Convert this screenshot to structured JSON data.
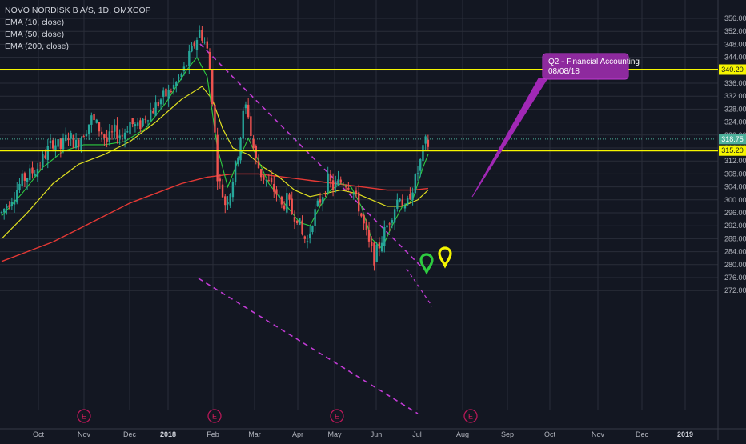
{
  "chart_data": {
    "type": "candlestick",
    "symbol_title": "NOVO NORDISK B A/S, 1D, OMXCOP",
    "indicators": [
      "EMA (10, close)",
      "EMA (50, close)",
      "EMA (200, close)"
    ],
    "y_axis": {
      "ticks": [
        "356.00",
        "352.00",
        "348.00",
        "344.00",
        "340.00",
        "336.00",
        "332.00",
        "328.00",
        "324.00",
        "320.00",
        "316.00",
        "312.00",
        "308.00",
        "304.00",
        "300.00",
        "296.00",
        "292.00",
        "288.00",
        "284.00",
        "280.00",
        "276.00",
        "272.00"
      ],
      "range": [
        271,
        358
      ]
    },
    "x_axis": {
      "ticks": [
        {
          "label": "Oct",
          "bold": false
        },
        {
          "label": "Nov",
          "bold": false
        },
        {
          "label": "Dec",
          "bold": false
        },
        {
          "label": "2018",
          "bold": true
        },
        {
          "label": "Feb",
          "bold": false
        },
        {
          "label": "Mar",
          "bold": false
        },
        {
          "label": "Apr",
          "bold": false
        },
        {
          "label": "May",
          "bold": false
        },
        {
          "label": "Jun",
          "bold": false
        },
        {
          "label": "Jul",
          "bold": false
        },
        {
          "label": "Aug",
          "bold": false
        },
        {
          "label": "Sep",
          "bold": false
        },
        {
          "label": "Oct",
          "bold": false
        },
        {
          "label": "Nov",
          "bold": false
        },
        {
          "label": "Dec",
          "bold": false
        },
        {
          "label": "2019",
          "bold": true
        }
      ]
    },
    "price_path": [
      [
        0,
        296
      ],
      [
        5,
        302
      ],
      [
        8,
        306
      ],
      [
        11,
        308
      ],
      [
        14,
        310
      ],
      [
        17,
        314
      ],
      [
        20,
        318
      ],
      [
        23,
        316
      ],
      [
        26,
        320
      ],
      [
        29,
        317
      ],
      [
        32,
        321
      ],
      [
        35,
        325
      ],
      [
        38,
        322
      ],
      [
        41,
        318
      ],
      [
        44,
        321
      ],
      [
        47,
        320
      ],
      [
        50,
        324
      ],
      [
        53,
        322
      ],
      [
        56,
        326
      ],
      [
        59,
        328
      ],
      [
        62,
        331
      ],
      [
        65,
        333
      ],
      [
        68,
        336
      ],
      [
        71,
        340
      ],
      [
        73,
        344
      ],
      [
        75,
        348
      ],
      [
        77,
        352
      ],
      [
        78.5,
        350
      ],
      [
        80,
        346
      ],
      [
        81.5,
        337
      ],
      [
        83,
        320
      ],
      [
        84,
        308
      ],
      [
        85.5,
        303
      ],
      [
        87,
        299
      ],
      [
        89,
        303
      ],
      [
        91,
        310
      ],
      [
        92.5,
        317
      ],
      [
        94,
        326
      ],
      [
        95.5,
        330
      ],
      [
        97,
        320
      ],
      [
        99,
        312
      ],
      [
        101,
        308
      ],
      [
        103,
        306
      ],
      [
        105,
        304
      ],
      [
        107,
        302
      ],
      [
        109,
        298
      ],
      [
        111,
        300
      ],
      [
        113,
        296
      ],
      [
        115,
        295
      ],
      [
        117,
        289
      ],
      [
        119,
        287
      ],
      [
        121,
        294
      ],
      [
        123,
        298
      ],
      [
        125,
        302
      ],
      [
        127,
        306
      ],
      [
        129,
        304
      ],
      [
        131,
        305
      ],
      [
        133,
        306
      ],
      [
        135,
        305
      ],
      [
        137,
        302
      ],
      [
        139,
        298
      ],
      [
        141,
        292
      ],
      [
        143,
        286
      ],
      [
        145,
        282
      ],
      [
        147,
        286
      ],
      [
        149,
        290
      ],
      [
        151,
        294
      ],
      [
        153,
        298
      ],
      [
        155,
        302
      ],
      [
        157,
        296
      ],
      [
        159,
        302
      ],
      [
        161,
        306
      ],
      [
        162.5,
        310
      ],
      [
        164,
        315
      ],
      [
        165.5,
        319
      ],
      [
        166,
        317
      ]
    ],
    "ema10": [
      [
        0,
        295
      ],
      [
        8,
        302
      ],
      [
        16,
        310
      ],
      [
        24,
        315
      ],
      [
        32,
        317
      ],
      [
        40,
        317
      ],
      [
        48,
        318
      ],
      [
        56,
        322
      ],
      [
        64,
        330
      ],
      [
        72,
        340
      ],
      [
        76,
        344
      ],
      [
        80,
        338
      ],
      [
        84,
        316
      ],
      [
        88,
        304
      ],
      [
        92,
        312
      ],
      [
        96,
        319
      ],
      [
        100,
        312
      ],
      [
        104,
        305
      ],
      [
        108,
        301
      ],
      [
        112,
        297
      ],
      [
        116,
        293
      ],
      [
        120,
        292
      ],
      [
        124,
        298
      ],
      [
        128,
        303
      ],
      [
        132,
        305
      ],
      [
        136,
        304
      ],
      [
        140,
        298
      ],
      [
        144,
        288
      ],
      [
        148,
        285
      ],
      [
        152,
        292
      ],
      [
        156,
        298
      ],
      [
        160,
        300
      ],
      [
        164,
        310
      ],
      [
        166,
        314
      ]
    ],
    "ema50": [
      [
        0,
        288
      ],
      [
        10,
        296
      ],
      [
        20,
        305
      ],
      [
        30,
        311
      ],
      [
        40,
        314
      ],
      [
        50,
        318
      ],
      [
        60,
        324
      ],
      [
        70,
        331
      ],
      [
        78,
        335
      ],
      [
        82,
        331
      ],
      [
        86,
        322
      ],
      [
        90,
        316
      ],
      [
        96,
        314
      ],
      [
        102,
        310
      ],
      [
        108,
        307
      ],
      [
        114,
        303
      ],
      [
        120,
        301
      ],
      [
        126,
        302
      ],
      [
        132,
        303
      ],
      [
        138,
        302
      ],
      [
        144,
        300
      ],
      [
        150,
        298
      ],
      [
        156,
        298
      ],
      [
        162,
        300
      ],
      [
        166,
        303
      ]
    ],
    "ema200": [
      [
        0,
        281
      ],
      [
        10,
        284
      ],
      [
        20,
        287
      ],
      [
        30,
        291
      ],
      [
        40,
        295
      ],
      [
        50,
        299
      ],
      [
        60,
        302
      ],
      [
        70,
        305
      ],
      [
        80,
        307
      ],
      [
        90,
        308
      ],
      [
        100,
        308
      ],
      [
        110,
        307
      ],
      [
        120,
        306
      ],
      [
        130,
        305
      ],
      [
        140,
        304
      ],
      [
        150,
        303
      ],
      [
        160,
        303
      ],
      [
        166,
        303.5
      ]
    ],
    "horizontal_levels": [
      {
        "label": "340.20",
        "value": 340.2,
        "color": "#f5f500"
      },
      {
        "label": "315.20",
        "value": 315.2,
        "color": "#f5f500"
      }
    ],
    "last_price": {
      "label": "318.75",
      "value": 318.75,
      "color": "#4caf9a"
    },
    "earnings_markers": [
      "E",
      "E",
      "E",
      "E"
    ],
    "annotation": {
      "line1": "Q2 - Financial Accounting",
      "line2": "08/08/18"
    },
    "colors": {
      "up": "#26a69a",
      "down": "#ef5350",
      "ema10": "#2ecc40",
      "ema50": "#e0e020",
      "ema200": "#e53935",
      "channel": "#c13bd4",
      "grid": "#2a2e39",
      "background": "#131722",
      "earnings": "#c2185b"
    }
  }
}
